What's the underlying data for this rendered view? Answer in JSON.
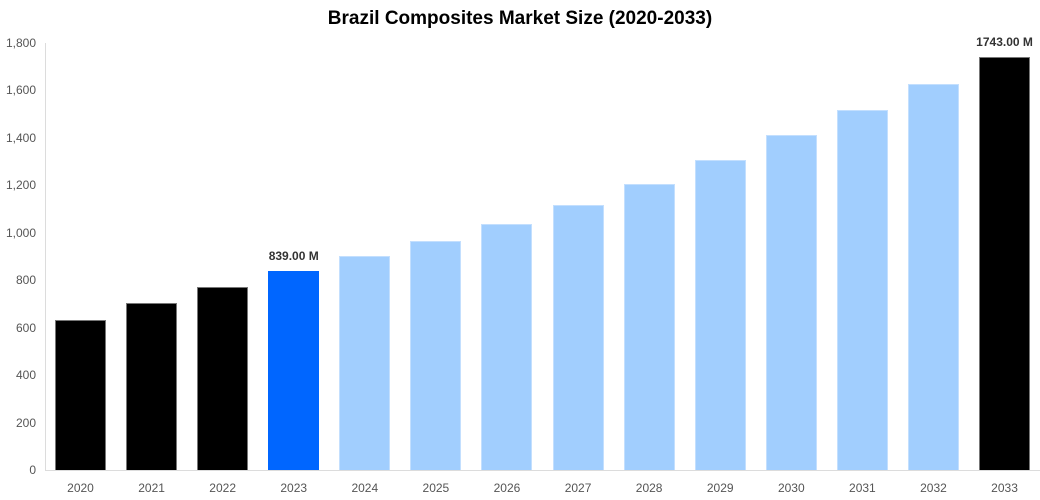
{
  "chart_data": {
    "type": "bar",
    "title": "Brazil Composites Market Size (2020-2033)",
    "xlabel": "",
    "ylabel": "",
    "ylim": [
      0,
      1800
    ],
    "yticks": [
      0,
      200,
      400,
      600,
      800,
      1000,
      1200,
      1400,
      1600,
      1800
    ],
    "ytick_labels": [
      "0",
      "200",
      "400",
      "600",
      "800",
      "1,000",
      "1,200",
      "1,400",
      "1,600",
      "1,800"
    ],
    "grid": false,
    "legend": null,
    "categories": [
      "2020",
      "2021",
      "2022",
      "2023",
      "2024",
      "2025",
      "2026",
      "2027",
      "2028",
      "2029",
      "2030",
      "2031",
      "2032",
      "2033"
    ],
    "values": [
      633,
      705,
      771,
      839,
      902,
      966,
      1037,
      1117,
      1206,
      1307,
      1412,
      1518,
      1627,
      1743
    ],
    "bar_styles": [
      "hist",
      "hist",
      "hist",
      "current",
      "forecast",
      "forecast",
      "forecast",
      "forecast",
      "forecast",
      "forecast",
      "forecast",
      "forecast",
      "forecast",
      "hist"
    ],
    "annotations": [
      {
        "category": "2023",
        "text": "839.00 M"
      },
      {
        "category": "2033",
        "text": "1743.00 M"
      }
    ],
    "colors": {
      "historical": "#000000",
      "current": "#0066ff",
      "forecast": "#a1cefe"
    },
    "unit": "M"
  }
}
